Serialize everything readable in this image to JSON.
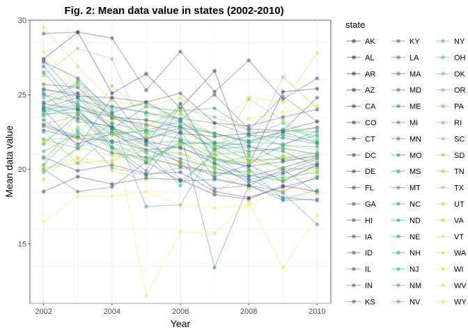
{
  "chart_data": {
    "type": "line",
    "title": "Fig. 2: Mean data value in states (2002-2010)",
    "xlabel": "Year",
    "ylabel": "Mean data value",
    "xlim": [
      2002,
      2010
    ],
    "ylim": [
      11,
      30
    ],
    "x_ticks": [
      2002,
      2004,
      2006,
      2008,
      2010
    ],
    "y_ticks": [
      15,
      20,
      25,
      30
    ],
    "grid": true,
    "legend_title": "state",
    "legend_position": "right",
    "palette": "viridis",
    "x": [
      2002,
      2003,
      2004,
      2005,
      2006,
      2007,
      2008,
      2009,
      2010
    ],
    "series": [
      {
        "name": "AK",
        "values": [
          27.4,
          29.2,
          25.1,
          26.4,
          24.1,
          26.6,
          20.3,
          25.2,
          25.4
        ]
      },
      {
        "name": "AL",
        "values": [
          18.5,
          19.5,
          19.0,
          19.4,
          19.3,
          18.3,
          18.0,
          18.9,
          18.5
        ]
      },
      {
        "name": "AR",
        "values": [
          22.6,
          22.1,
          21.1,
          20.8,
          20.2,
          19.8,
          19.5,
          20.1,
          20.8
        ]
      },
      {
        "name": "AZ",
        "values": [
          25.7,
          25.5,
          23.4,
          23.0,
          22.4,
          22.2,
          22.4,
          22.6,
          23.2
        ]
      },
      {
        "name": "CA",
        "values": [
          24.4,
          24.0,
          23.5,
          23.3,
          22.8,
          22.4,
          21.9,
          22.5,
          22.8
        ]
      },
      {
        "name": "CO",
        "values": [
          20.8,
          19.9,
          20.3,
          19.7,
          19.8,
          18.5,
          18.1,
          18.8,
          19.4
        ]
      },
      {
        "name": "CT",
        "values": [
          27.2,
          26.1,
          23.8,
          24.5,
          25.1,
          23.1,
          22.9,
          23.5,
          24.0
        ]
      },
      {
        "name": "DC",
        "values": [
          29.1,
          29.2,
          28.8,
          25.3,
          27.9,
          25.2,
          27.3,
          24.7,
          26.1
        ]
      },
      {
        "name": "DE",
        "values": [
          25.4,
          24.9,
          24.8,
          24.5,
          23.3,
          25.0,
          22.7,
          22.6,
          24.8
        ]
      },
      {
        "name": "FL",
        "values": [
          24.2,
          23.4,
          22.8,
          21.9,
          21.4,
          20.7,
          20.2,
          20.5,
          20.9
        ]
      },
      {
        "name": "GA",
        "values": [
          22.9,
          22.1,
          21.9,
          21.3,
          21.5,
          20.4,
          19.1,
          19.7,
          20.4
        ]
      },
      {
        "name": "HI",
        "values": [
          23.3,
          21.7,
          22.4,
          21.3,
          20.5,
          19.5,
          20.3,
          19.2,
          20.3
        ]
      },
      {
        "name": "IA",
        "values": [
          24.0,
          21.5,
          24.8,
          21.9,
          20.4,
          18.7,
          18.9,
          20.0,
          18.4
        ]
      },
      {
        "name": "ID",
        "values": [
          20.0,
          18.5,
          18.8,
          20.5,
          19.2,
          19.3,
          18.9,
          18.1,
          17.9
        ]
      },
      {
        "name": "IL",
        "values": [
          26.9,
          24.2,
          23.6,
          22.0,
          22.8,
          21.4,
          21.5,
          21.2,
          20.2
        ]
      },
      {
        "name": "IN",
        "values": [
          24.1,
          24.8,
          23.7,
          22.6,
          23.2,
          21.8,
          21.6,
          20.6,
          20.9
        ]
      },
      {
        "name": "KS",
        "values": [
          26.5,
          24.0,
          21.8,
          22.1,
          22.5,
          13.4,
          18.9,
          18.5,
          19.5
        ]
      },
      {
        "name": "KY",
        "values": [
          24.5,
          25.1,
          24.2,
          23.8,
          23.4,
          23.1,
          22.3,
          22.1,
          21.7
        ]
      },
      {
        "name": "LA",
        "values": [
          23.0,
          22.2,
          22.5,
          21.6,
          20.7,
          20.1,
          19.3,
          19.8,
          20.7
        ]
      },
      {
        "name": "MA",
        "values": [
          25.0,
          24.4,
          22.8,
          21.8,
          24.4,
          20.6,
          20.2,
          22.5,
          21.8
        ]
      },
      {
        "name": "MD",
        "values": [
          25.3,
          25.1,
          22.7,
          24.2,
          23.9,
          24.1,
          22.6,
          24.9,
          23.2
        ]
      },
      {
        "name": "ME",
        "values": [
          21.7,
          23.7,
          21.4,
          19.6,
          22.6,
          19.4,
          18.9,
          17.9,
          18.0
        ]
      },
      {
        "name": "MI",
        "values": [
          23.9,
          24.0,
          21.5,
          19.9,
          24.4,
          20.4,
          19.6,
          19.2,
          20.3
        ]
      },
      {
        "name": "MN",
        "values": [
          25.1,
          23.2,
          22.9,
          20.4,
          21.8,
          21.7,
          20.6,
          20.7,
          21.1
        ]
      },
      {
        "name": "MO",
        "values": [
          27.3,
          24.8,
          22.7,
          21.7,
          21.9,
          20.7,
          20.4,
          21.6,
          21.5
        ]
      },
      {
        "name": "MS",
        "values": [
          22.0,
          21.4,
          23.1,
          22.5,
          22.9,
          21.3,
          22.3,
          21.6,
          22.6
        ]
      },
      {
        "name": "MT",
        "values": [
          23.7,
          23.8,
          22.3,
          22.6,
          19.2,
          21.0,
          19.3,
          18.4,
          16.3
        ]
      },
      {
        "name": "NC",
        "values": [
          24.0,
          24.3,
          23.1,
          17.5,
          17.6,
          21.5,
          21.8,
          21.7,
          22.3
        ]
      },
      {
        "name": "ND",
        "values": [
          19.8,
          21.4,
          22.4,
          21.1,
          18.9,
          21.3,
          20.0,
          18.0,
          18.6
        ]
      },
      {
        "name": "NE",
        "values": [
          20.3,
          22.6,
          20.1,
          19.6,
          20.1,
          19.7,
          19.9,
          19.4,
          19.8
        ]
      },
      {
        "name": "NH",
        "values": [
          21.2,
          22.4,
          21.8,
          20.7,
          21.7,
          21.8,
          21.2,
          21.4,
          21.0
        ]
      },
      {
        "name": "NJ",
        "values": [
          24.8,
          25.7,
          23.5,
          23.3,
          23.0,
          22.4,
          21.8,
          22.3,
          21.8
        ]
      },
      {
        "name": "NM",
        "values": [
          23.6,
          24.2,
          21.5,
          20.5,
          21.9,
          20.3,
          20.9,
          20.0,
          20.1
        ]
      },
      {
        "name": "NV",
        "values": [
          23.9,
          24.6,
          24.2,
          23.8,
          23.2,
          21.7,
          22.2,
          23.1,
          21.9
        ]
      },
      {
        "name": "NY",
        "values": [
          24.3,
          25.9,
          24.0,
          24.4,
          23.2,
          22.4,
          21.8,
          22.6,
          22.5
        ]
      },
      {
        "name": "OH",
        "values": [
          22.5,
          20.4,
          22.4,
          22.6,
          22.0,
          21.6,
          21.0,
          22.7,
          22.2
        ]
      },
      {
        "name": "OK",
        "values": [
          23.0,
          23.6,
          22.5,
          22.4,
          22.1,
          21.0,
          21.2,
          21.4,
          21.0
        ]
      },
      {
        "name": "OR",
        "values": [
          23.6,
          25.9,
          23.6,
          22.8,
          24.1,
          23.5,
          22.6,
          22.3,
          22.8
        ]
      },
      {
        "name": "PA",
        "values": [
          20.7,
          22.8,
          21.4,
          21.2,
          21.1,
          20.0,
          19.8,
          20.9,
          20.5
        ]
      },
      {
        "name": "RI",
        "values": [
          26.3,
          28.1,
          27.4,
          22.2,
          23.7,
          22.3,
          21.3,
          26.2,
          24.1
        ]
      },
      {
        "name": "SC",
        "values": [
          22.0,
          22.1,
          25.6,
          23.6,
          23.9,
          20.7,
          24.7,
          23.3,
          22.0
        ]
      },
      {
        "name": "SD",
        "values": [
          20.3,
          23.8,
          21.1,
          20.6,
          21.6,
          18.4,
          19.8,
          19.2,
          19.5
        ]
      },
      {
        "name": "TN",
        "values": [
          21.7,
          24.3,
          23.5,
          22.5,
          22.7,
          21.2,
          20.8,
          21.6,
          21.3
        ]
      },
      {
        "name": "TX",
        "values": [
          20.1,
          20.4,
          20.6,
          21.3,
          21.0,
          20.6,
          20.4,
          20.8,
          20.0
        ]
      },
      {
        "name": "UT",
        "values": [
          19.3,
          21.5,
          20.9,
          20.7,
          20.3,
          19.8,
          18.7,
          19.5,
          19.8
        ]
      },
      {
        "name": "VA",
        "values": [
          20.0,
          20.7,
          19.9,
          19.3,
          20.5,
          20.2,
          20.6,
          20.1,
          19.9
        ]
      },
      {
        "name": "VT",
        "values": [
          29.5,
          26.9,
          24.6,
          24.2,
          24.8,
          22.8,
          24.8,
          24.5,
          27.8
        ]
      },
      {
        "name": "WA",
        "values": [
          21.9,
          20.8,
          20.4,
          22.2,
          21.7,
          21.0,
          20.4,
          20.9,
          20.8
        ]
      },
      {
        "name": "WI",
        "values": [
          27.9,
          25.6,
          22.3,
          23.1,
          23.9,
          21.5,
          23.4,
          23.8,
          24.3
        ]
      },
      {
        "name": "WV",
        "values": [
          25.7,
          22.0,
          23.2,
          11.5,
          15.8,
          15.7,
          17.8,
          13.4,
          16.9
        ]
      },
      {
        "name": "WY",
        "values": [
          16.5,
          18.2,
          18.2,
          18.5,
          17.6,
          17.4,
          17.6,
          18.6,
          18.4
        ]
      }
    ]
  }
}
